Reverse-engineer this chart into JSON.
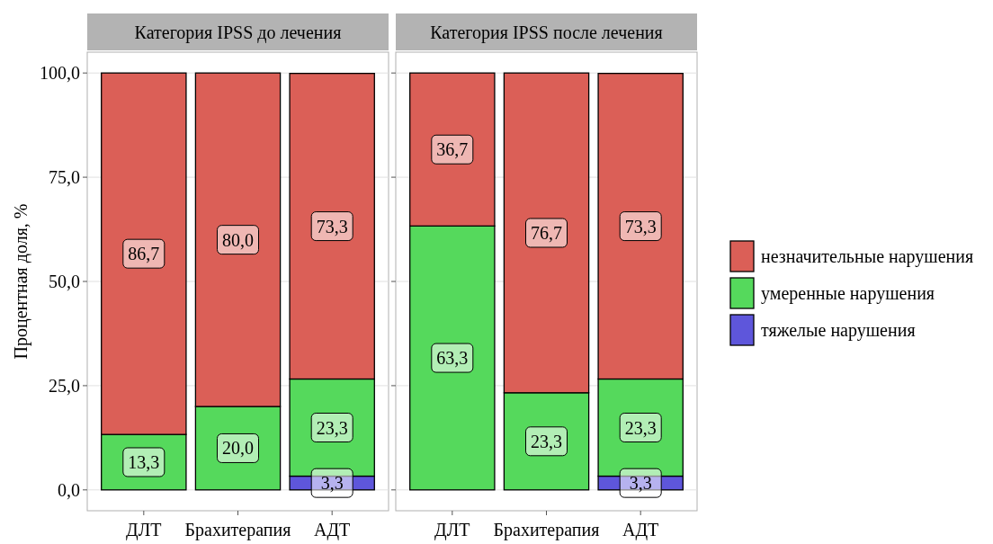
{
  "chart_data": [
    {
      "type": "bar",
      "title": "Категория IPSS до лечения",
      "ylabel": "Процентная доля, %",
      "categories": [
        "ДЛТ",
        "Брахитерапия",
        "АДТ"
      ],
      "stacked": true,
      "ylim": [
        -5,
        105
      ],
      "yticks": [
        {
          "value": 0,
          "label": "0,0"
        },
        {
          "value": 25,
          "label": "25,0"
        },
        {
          "value": 50,
          "label": "50,0"
        },
        {
          "value": 75,
          "label": "75,0"
        },
        {
          "value": 100,
          "label": "100,0"
        }
      ],
      "grid": "y",
      "series": [
        {
          "color": "#5e56db",
          "values": [
            0,
            0,
            3.3
          ],
          "value_labels": [
            null,
            null,
            "3,3"
          ]
        },
        {
          "color": "#55d95c",
          "values": [
            13.3,
            20.0,
            23.3
          ],
          "value_labels": [
            "13,3",
            "20,0",
            "23,3"
          ]
        },
        {
          "color": "#db5f57",
          "values": [
            86.7,
            80.0,
            73.3
          ],
          "value_labels": [
            "86,7",
            "80,0",
            "73,3"
          ]
        }
      ]
    },
    {
      "type": "bar",
      "title": "Категория IPSS после лечения",
      "categories": [
        "ДЛТ",
        "Брахитерапия",
        "АДТ"
      ],
      "stacked": true,
      "ylim": [
        -5,
        105
      ],
      "yticks": [
        {
          "value": 0,
          "label": null
        },
        {
          "value": 25,
          "label": null
        },
        {
          "value": 50,
          "label": null
        },
        {
          "value": 75,
          "label": null
        },
        {
          "value": 100,
          "label": null
        }
      ],
      "grid": "y",
      "tick_labels": "x",
      "legend": "right",
      "series": [
        {
          "name": "тяжелые нарушения",
          "color": "#5e56db",
          "values": [
            0,
            0,
            3.3
          ],
          "value_labels": [
            null,
            null,
            "3,3"
          ]
        },
        {
          "name": "умеренные нарушения",
          "color": "#55d95c",
          "values": [
            63.3,
            23.3,
            23.3
          ],
          "value_labels": [
            "63,3",
            "23,3",
            "23,3"
          ]
        },
        {
          "name": "незначительные нарушения",
          "color": "#db5f57",
          "values": [
            36.7,
            76.7,
            73.3
          ],
          "value_labels": [
            "36,7",
            "76,7",
            "73,3"
          ]
        }
      ]
    }
  ]
}
